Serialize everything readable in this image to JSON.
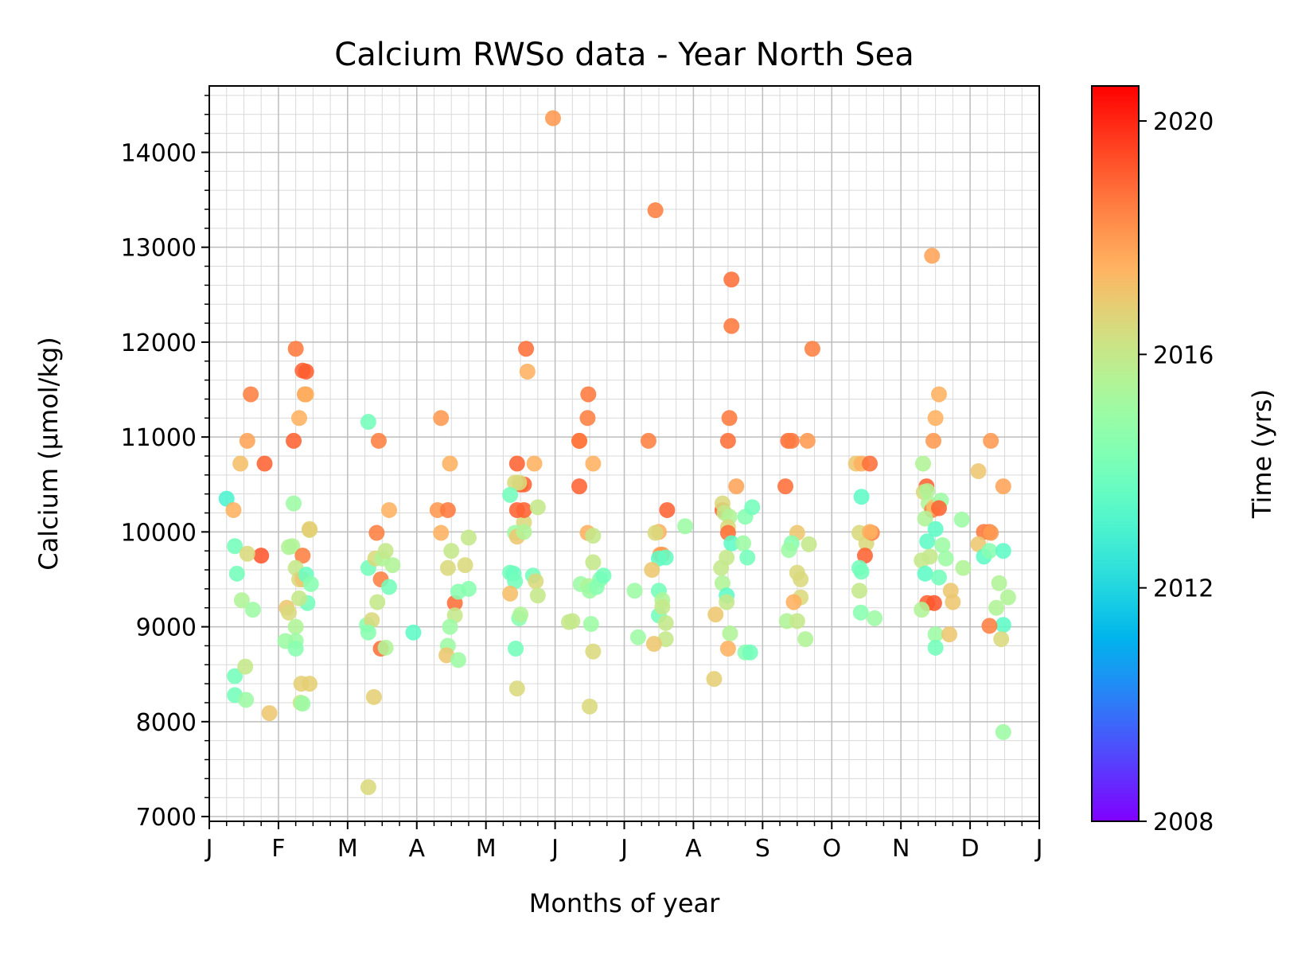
{
  "chart_data": {
    "type": "scatter",
    "title": "Calcium RWSo data - Year North Sea",
    "xlabel": "Months of year",
    "ylabel": "Calcium (µmol/kg)",
    "xlim": [
      0,
      12
    ],
    "ylim": [
      6950,
      14700
    ],
    "x_ticks": [
      {
        "value": 0,
        "label": "J"
      },
      {
        "value": 1,
        "label": "F"
      },
      {
        "value": 2,
        "label": "M"
      },
      {
        "value": 3,
        "label": "A"
      },
      {
        "value": 4,
        "label": "M"
      },
      {
        "value": 5,
        "label": "J"
      },
      {
        "value": 6,
        "label": "J"
      },
      {
        "value": 7,
        "label": "A"
      },
      {
        "value": 8,
        "label": "S"
      },
      {
        "value": 9,
        "label": "O"
      },
      {
        "value": 10,
        "label": "N"
      },
      {
        "value": 11,
        "label": "D"
      },
      {
        "value": 12,
        "label": "J"
      }
    ],
    "y_ticks": [
      {
        "value": 7000,
        "label": "7000"
      },
      {
        "value": 8000,
        "label": "8000"
      },
      {
        "value": 9000,
        "label": "9000"
      },
      {
        "value": 10000,
        "label": "10000"
      },
      {
        "value": 11000,
        "label": "11000"
      },
      {
        "value": 12000,
        "label": "12000"
      },
      {
        "value": 13000,
        "label": "13000"
      },
      {
        "value": 14000,
        "label": "14000"
      }
    ],
    "grid": true,
    "colorbar": {
      "label": "Time (yrs)",
      "range": [
        2008,
        2020.6
      ],
      "ticks": [
        {
          "value": 2008,
          "label": "2008"
        },
        {
          "value": 2012,
          "label": "2012"
        },
        {
          "value": 2016,
          "label": "2016"
        },
        {
          "value": 2020,
          "label": "2020"
        }
      ],
      "colormap": "rainbow"
    },
    "points": [
      [
        0.25,
        10350,
        2013.0
      ],
      [
        0.35,
        10230,
        2017.5
      ],
      [
        0.45,
        10720,
        2017.2
      ],
      [
        0.55,
        10960,
        2017.8
      ],
      [
        0.6,
        11450,
        2018.5
      ],
      [
        0.8,
        10720,
        2019.0
      ],
      [
        0.75,
        9750,
        2019.2
      ],
      [
        0.37,
        9850,
        2014.0
      ],
      [
        0.4,
        9560,
        2014.0
      ],
      [
        0.55,
        9770,
        2016.5
      ],
      [
        0.47,
        9280,
        2015.5
      ],
      [
        0.63,
        9180,
        2015.0
      ],
      [
        0.37,
        8480,
        2014.0
      ],
      [
        0.37,
        8280,
        2014.0
      ],
      [
        0.53,
        8230,
        2015.0
      ],
      [
        0.52,
        8580,
        2016.0
      ],
      [
        0.87,
        8090,
        2017.0
      ],
      [
        1.25,
        11930,
        2018.6
      ],
      [
        1.22,
        10960,
        2019.0
      ],
      [
        1.35,
        11700,
        2019.0
      ],
      [
        1.38,
        11450,
        2017.8
      ],
      [
        1.3,
        11200,
        2017.5
      ],
      [
        1.4,
        11450,
        2017.6
      ],
      [
        1.4,
        11690,
        2019.1
      ],
      [
        1.45,
        10020,
        2016.5
      ],
      [
        1.45,
        10030,
        2016.8
      ],
      [
        1.22,
        10300,
        2015.0
      ],
      [
        1.15,
        9840,
        2015.5
      ],
      [
        1.2,
        9850,
        2015.5
      ],
      [
        1.35,
        9750,
        2018.5
      ],
      [
        1.25,
        9620,
        2016.0
      ],
      [
        1.3,
        9500,
        2016.5
      ],
      [
        1.35,
        9500,
        2017.0
      ],
      [
        1.4,
        9550,
        2013.8
      ],
      [
        1.47,
        9450,
        2014.5
      ],
      [
        1.42,
        9250,
        2014.0
      ],
      [
        1.3,
        9300,
        2016.0
      ],
      [
        1.12,
        9200,
        2017.0
      ],
      [
        1.15,
        9150,
        2016.5
      ],
      [
        1.25,
        9000,
        2015.5
      ],
      [
        1.25,
        8850,
        2015.0
      ],
      [
        1.1,
        8850,
        2015.0
      ],
      [
        1.25,
        8770,
        2014.5
      ],
      [
        1.45,
        8400,
        2016.8
      ],
      [
        1.33,
        8400,
        2016.8
      ],
      [
        1.32,
        8200,
        2016.0
      ],
      [
        1.35,
        8190,
        2015.0
      ],
      [
        2.3,
        11160,
        2014.0
      ],
      [
        2.45,
        10960,
        2018.5
      ],
      [
        2.6,
        10230,
        2017.5
      ],
      [
        2.42,
        9990,
        2018.5
      ],
      [
        2.3,
        9620,
        2014.0
      ],
      [
        2.4,
        9720,
        2016.5
      ],
      [
        2.5,
        9720,
        2015.5
      ],
      [
        2.55,
        9800,
        2016.0
      ],
      [
        2.65,
        9650,
        2015.5
      ],
      [
        2.48,
        9500,
        2018.5
      ],
      [
        2.6,
        9420,
        2014.0
      ],
      [
        2.43,
        9260,
        2016.0
      ],
      [
        2.28,
        9020,
        2014.5
      ],
      [
        2.35,
        9070,
        2016.5
      ],
      [
        2.3,
        8940,
        2014.5
      ],
      [
        2.48,
        8770,
        2018.8
      ],
      [
        2.55,
        8780,
        2015.5
      ],
      [
        2.38,
        8260,
        2016.8
      ],
      [
        2.3,
        7310,
        2016.5
      ],
      [
        2.95,
        8940,
        2013.5
      ],
      [
        3.35,
        11200,
        2018.0
      ],
      [
        3.3,
        10230,
        2018.0
      ],
      [
        3.45,
        10230,
        2018.6
      ],
      [
        3.35,
        9990,
        2017.5
      ],
      [
        3.48,
        10720,
        2017.5
      ],
      [
        3.5,
        9800,
        2016.0
      ],
      [
        3.45,
        9620,
        2016.5
      ],
      [
        3.7,
        9650,
        2016.5
      ],
      [
        3.75,
        9940,
        2016.0
      ],
      [
        3.55,
        9250,
        2018.8
      ],
      [
        3.6,
        9370,
        2014.5
      ],
      [
        3.75,
        9400,
        2014.5
      ],
      [
        3.55,
        9120,
        2016.0
      ],
      [
        3.48,
        9000,
        2015.0
      ],
      [
        3.45,
        8800,
        2015.0
      ],
      [
        3.43,
        8700,
        2017.0
      ],
      [
        3.6,
        8650,
        2015.0
      ],
      [
        4.45,
        10720,
        2019.0
      ],
      [
        4.5,
        10500,
        2019.1
      ],
      [
        4.55,
        10500,
        2019.0
      ],
      [
        4.42,
        10520,
        2016.5
      ],
      [
        4.48,
        10520,
        2016.5
      ],
      [
        4.35,
        10390,
        2014.0
      ],
      [
        4.55,
        10100,
        2016.5
      ],
      [
        4.45,
        10230,
        2019.0
      ],
      [
        4.55,
        10230,
        2019.0
      ],
      [
        4.58,
        11930,
        2018.8
      ],
      [
        4.6,
        11690,
        2017.5
      ],
      [
        4.7,
        10720,
        2017.5
      ],
      [
        4.75,
        10260,
        2016.0
      ],
      [
        4.42,
        9990,
        2015.0
      ],
      [
        4.45,
        9950,
        2017.0
      ],
      [
        4.55,
        10000,
        2015.5
      ],
      [
        4.35,
        9570,
        2014.0
      ],
      [
        4.4,
        9560,
        2013.8
      ],
      [
        4.42,
        9480,
        2014.0
      ],
      [
        4.68,
        9540,
        2014.0
      ],
      [
        4.72,
        9480,
        2016.5
      ],
      [
        4.75,
        9330,
        2016.0
      ],
      [
        4.35,
        9350,
        2017.2
      ],
      [
        4.48,
        9090,
        2014.5
      ],
      [
        4.5,
        9130,
        2015.5
      ],
      [
        4.43,
        8770,
        2014.0
      ],
      [
        4.45,
        8350,
        2016.5
      ],
      [
        4.97,
        14360,
        2018.0
      ],
      [
        5.2,
        9050,
        2016.0
      ],
      [
        5.25,
        9060,
        2016.0
      ],
      [
        5.37,
        9450,
        2015.0
      ],
      [
        5.35,
        10960,
        2019.0
      ],
      [
        5.35,
        10960,
        2018.6
      ],
      [
        5.35,
        10480,
        2019.0
      ],
      [
        5.48,
        11450,
        2018.6
      ],
      [
        5.47,
        11200,
        2018.5
      ],
      [
        5.55,
        10720,
        2017.5
      ],
      [
        5.47,
        9990,
        2017.5
      ],
      [
        5.55,
        9960,
        2016.0
      ],
      [
        5.55,
        9680,
        2016.0
      ],
      [
        5.48,
        9430,
        2015.5
      ],
      [
        5.5,
        9380,
        2015.0
      ],
      [
        5.6,
        9420,
        2014.5
      ],
      [
        5.65,
        9500,
        2014.5
      ],
      [
        5.7,
        9540,
        2014.0
      ],
      [
        5.52,
        9030,
        2015.0
      ],
      [
        5.55,
        8740,
        2016.5
      ],
      [
        5.5,
        8160,
        2016.5
      ],
      [
        6.35,
        10960,
        2018.5
      ],
      [
        6.5,
        10000,
        2017.5
      ],
      [
        6.45,
        9990,
        2016.5
      ],
      [
        6.52,
        9760,
        2018.0
      ],
      [
        6.55,
        9760,
        2018.0
      ],
      [
        6.5,
        9720,
        2013.5
      ],
      [
        6.6,
        9730,
        2013.7
      ],
      [
        6.4,
        9600,
        2017.0
      ],
      [
        6.5,
        9380,
        2014.0
      ],
      [
        6.55,
        9280,
        2015.5
      ],
      [
        6.5,
        9120,
        2014.0
      ],
      [
        6.55,
        9210,
        2016.0
      ],
      [
        6.6,
        9040,
        2016.0
      ],
      [
        6.6,
        8870,
        2016.0
      ],
      [
        6.43,
        8820,
        2017.0
      ],
      [
        6.15,
        9380,
        2015.0
      ],
      [
        6.2,
        8890,
        2015.0
      ],
      [
        6.45,
        13390,
        2018.5
      ],
      [
        6.62,
        10230,
        2019.0
      ],
      [
        6.88,
        10060,
        2015.0
      ],
      [
        7.42,
        10230,
        2019.0
      ],
      [
        7.42,
        10300,
        2016.5
      ],
      [
        7.45,
        10200,
        2016.0
      ],
      [
        7.52,
        10160,
        2015.5
      ],
      [
        7.5,
        10050,
        2016.5
      ],
      [
        7.5,
        9990,
        2018.8
      ],
      [
        7.55,
        12660,
        2018.8
      ],
      [
        7.55,
        12170,
        2018.6
      ],
      [
        7.52,
        11200,
        2018.6
      ],
      [
        7.5,
        10960,
        2018.8
      ],
      [
        7.62,
        10480,
        2017.8
      ],
      [
        7.48,
        9730,
        2016.0
      ],
      [
        7.4,
        9620,
        2016.0
      ],
      [
        7.55,
        9880,
        2013.5
      ],
      [
        7.72,
        9880,
        2015.0
      ],
      [
        7.78,
        9730,
        2014.0
      ],
      [
        7.75,
        10160,
        2014.5
      ],
      [
        7.85,
        10260,
        2014.0
      ],
      [
        7.42,
        9460,
        2015.5
      ],
      [
        7.48,
        9330,
        2013.5
      ],
      [
        7.48,
        9260,
        2016.0
      ],
      [
        7.32,
        9130,
        2017.0
      ],
      [
        7.53,
        8930,
        2015.5
      ],
      [
        7.5,
        8770,
        2017.5
      ],
      [
        7.75,
        8730,
        2014.5
      ],
      [
        7.82,
        8730,
        2014.0
      ],
      [
        7.3,
        8450,
        2016.8
      ],
      [
        8.33,
        10480,
        2018.8
      ],
      [
        8.37,
        10960,
        2018.8
      ],
      [
        8.42,
        10960,
        2018.6
      ],
      [
        8.65,
        10960,
        2018.0
      ],
      [
        8.72,
        11930,
        2018.5
      ],
      [
        8.5,
        9990,
        2017.0
      ],
      [
        8.42,
        9880,
        2014.5
      ],
      [
        8.38,
        9810,
        2015.0
      ],
      [
        8.5,
        9570,
        2016.5
      ],
      [
        8.67,
        9870,
        2016.0
      ],
      [
        8.55,
        9500,
        2016.5
      ],
      [
        8.55,
        9310,
        2016.5
      ],
      [
        8.45,
        9260,
        2017.5
      ],
      [
        8.35,
        9060,
        2015.5
      ],
      [
        8.5,
        9060,
        2016.0
      ],
      [
        8.62,
        8870,
        2015.5
      ],
      [
        9.35,
        10720,
        2017.0
      ],
      [
        9.43,
        10720,
        2017.5
      ],
      [
        9.55,
        10720,
        2018.8
      ],
      [
        9.43,
        10370,
        2013.5
      ],
      [
        9.4,
        9990,
        2016.5
      ],
      [
        9.5,
        9880,
        2016.5
      ],
      [
        9.58,
        9990,
        2018.5
      ],
      [
        9.55,
        10000,
        2017.5
      ],
      [
        9.48,
        9750,
        2019.0
      ],
      [
        9.4,
        9620,
        2014.0
      ],
      [
        9.43,
        9580,
        2014.0
      ],
      [
        9.4,
        9380,
        2016.0
      ],
      [
        9.42,
        9150,
        2014.5
      ],
      [
        9.62,
        9090,
        2015.0
      ],
      [
        10.32,
        10720,
        2015.5
      ],
      [
        10.37,
        10480,
        2019.0
      ],
      [
        10.33,
        10420,
        2016.5
      ],
      [
        10.38,
        10430,
        2015.5
      ],
      [
        10.4,
        10300,
        2015.5
      ],
      [
        10.45,
        10230,
        2018.5
      ],
      [
        10.48,
        10260,
        2017.2
      ],
      [
        10.58,
        10330,
        2015.0
      ],
      [
        10.55,
        10250,
        2019.0
      ],
      [
        10.35,
        10140,
        2015.5
      ],
      [
        10.5,
        10030,
        2013.5
      ],
      [
        10.38,
        9900,
        2013.5
      ],
      [
        10.5,
        11200,
        2017.5
      ],
      [
        10.47,
        10960,
        2018.0
      ],
      [
        10.55,
        11450,
        2017.5
      ],
      [
        10.45,
        12910,
        2017.8
      ],
      [
        10.3,
        9700,
        2016.0
      ],
      [
        10.42,
        9740,
        2016.0
      ],
      [
        10.6,
        9860,
        2015.0
      ],
      [
        10.65,
        9720,
        2015.0
      ],
      [
        10.35,
        9560,
        2013.5
      ],
      [
        10.55,
        9520,
        2014.0
      ],
      [
        10.38,
        9250,
        2019.0
      ],
      [
        10.48,
        9250,
        2019.2
      ],
      [
        10.3,
        9180,
        2015.5
      ],
      [
        10.72,
        9380,
        2017.0
      ],
      [
        10.75,
        9260,
        2017.0
      ],
      [
        10.5,
        8920,
        2015.0
      ],
      [
        10.7,
        8920,
        2017.0
      ],
      [
        10.5,
        8780,
        2014.0
      ],
      [
        10.88,
        10130,
        2015.0
      ],
      [
        10.9,
        9620,
        2015.5
      ],
      [
        11.12,
        10640,
        2017.0
      ],
      [
        11.3,
        10960,
        2018.0
      ],
      [
        11.2,
        10000,
        2018.6
      ],
      [
        11.28,
        10000,
        2018.5
      ],
      [
        11.3,
        9990,
        2018.0
      ],
      [
        11.12,
        9870,
        2017.0
      ],
      [
        11.2,
        9740,
        2013.5
      ],
      [
        11.28,
        9800,
        2014.5
      ],
      [
        11.48,
        10480,
        2017.8
      ],
      [
        11.48,
        9800,
        2013.5
      ],
      [
        11.42,
        9460,
        2015.5
      ],
      [
        11.55,
        9310,
        2015.5
      ],
      [
        11.38,
        9200,
        2015.5
      ],
      [
        11.48,
        9020,
        2013.5
      ],
      [
        11.28,
        9010,
        2018.5
      ],
      [
        11.45,
        8870,
        2016.5
      ],
      [
        11.48,
        7890,
        2015.0
      ]
    ]
  }
}
